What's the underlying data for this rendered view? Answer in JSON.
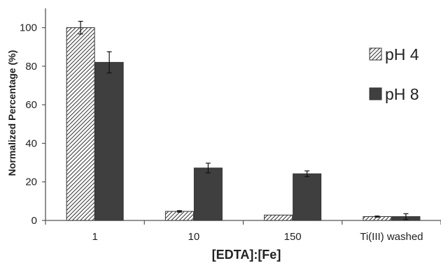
{
  "chart_data": {
    "type": "bar",
    "xlabel": "[EDTA]:[Fe]",
    "ylabel": "Normalized Percentage (%)",
    "categories": [
      "1",
      "10",
      "150",
      "Ti(III) washed"
    ],
    "ylim": [
      0,
      110
    ],
    "yticks": [
      0,
      20,
      40,
      60,
      80,
      100
    ],
    "grid": false,
    "legend_position": "right",
    "series": [
      {
        "name": "pH 4",
        "values": [
          100,
          4.7,
          2.8,
          2.0
        ],
        "errors": [
          3.3,
          0.4,
          0,
          0.3
        ],
        "pattern": "diagonal-hatch",
        "color": "#444444"
      },
      {
        "name": "pH 8",
        "values": [
          82,
          27.2,
          24.2,
          2.0
        ],
        "errors": [
          5.5,
          2.5,
          1.5,
          1.5
        ],
        "pattern": "solid",
        "color": "#3f3f3f"
      }
    ]
  }
}
